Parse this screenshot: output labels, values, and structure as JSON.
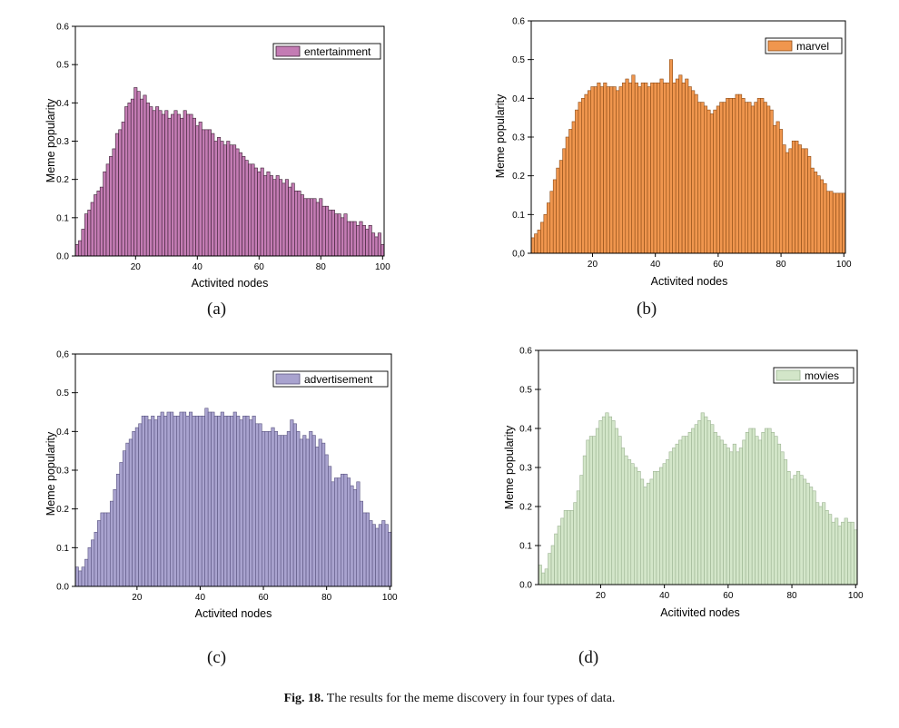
{
  "caption": {
    "label": "Fig. 18.",
    "text": "The results for the meme discovery in four types of data."
  },
  "chart_data": [
    {
      "type": "bar",
      "panel_label": "(a)",
      "xlabel": "Activited nodes",
      "ylabel": "Meme popularity",
      "legend": "entertainment",
      "legend_position": "top-right",
      "color": "#c47cb4",
      "edge_color": "#3a1f33",
      "xlim": [
        1,
        100
      ],
      "ylim": [
        0,
        0.6
      ],
      "xticks": [
        20,
        40,
        60,
        80,
        100
      ],
      "yticks": [
        0.0,
        0.1,
        0.2,
        0.3,
        0.4,
        0.5,
        0.6
      ],
      "ytick_labels": [
        "0.0",
        "0.1",
        "0.2",
        "0.3",
        "0.4",
        "0.5",
        "0.6"
      ],
      "x": [
        1,
        2,
        3,
        4,
        5,
        6,
        7,
        8,
        9,
        10,
        11,
        12,
        13,
        14,
        15,
        16,
        17,
        18,
        19,
        20,
        21,
        22,
        23,
        24,
        25,
        26,
        27,
        28,
        29,
        30,
        31,
        32,
        33,
        34,
        35,
        36,
        37,
        38,
        39,
        40,
        41,
        42,
        43,
        44,
        45,
        46,
        47,
        48,
        49,
        50,
        51,
        52,
        53,
        54,
        55,
        56,
        57,
        58,
        59,
        60,
        61,
        62,
        63,
        64,
        65,
        66,
        67,
        68,
        69,
        70,
        71,
        72,
        73,
        74,
        75,
        76,
        77,
        78,
        79,
        80,
        81,
        82,
        83,
        84,
        85,
        86,
        87,
        88,
        89,
        90,
        91,
        92,
        93,
        94,
        95,
        96,
        97,
        98,
        99,
        100
      ],
      "values": [
        0.03,
        0.04,
        0.07,
        0.11,
        0.12,
        0.14,
        0.16,
        0.17,
        0.18,
        0.22,
        0.24,
        0.26,
        0.28,
        0.32,
        0.33,
        0.35,
        0.39,
        0.4,
        0.41,
        0.44,
        0.43,
        0.41,
        0.42,
        0.4,
        0.39,
        0.38,
        0.39,
        0.38,
        0.37,
        0.38,
        0.36,
        0.37,
        0.38,
        0.37,
        0.36,
        0.38,
        0.37,
        0.37,
        0.36,
        0.34,
        0.35,
        0.33,
        0.33,
        0.33,
        0.32,
        0.3,
        0.31,
        0.3,
        0.29,
        0.3,
        0.29,
        0.29,
        0.28,
        0.27,
        0.26,
        0.25,
        0.24,
        0.24,
        0.23,
        0.22,
        0.23,
        0.21,
        0.22,
        0.21,
        0.2,
        0.21,
        0.2,
        0.19,
        0.2,
        0.18,
        0.19,
        0.17,
        0.17,
        0.16,
        0.15,
        0.15,
        0.15,
        0.15,
        0.14,
        0.15,
        0.13,
        0.13,
        0.12,
        0.12,
        0.11,
        0.11,
        0.1,
        0.11,
        0.09,
        0.09,
        0.09,
        0.08,
        0.09,
        0.08,
        0.07,
        0.08,
        0.06,
        0.05,
        0.06,
        0.03
      ]
    },
    {
      "type": "bar",
      "panel_label": "(b)",
      "xlabel": "Activited nodes",
      "ylabel": "Meme popularity",
      "legend": "marvel",
      "legend_position": "top-right",
      "color": "#f0964e",
      "edge_color": "#8c4b16",
      "xlim": [
        1,
        100
      ],
      "ylim": [
        0,
        0.6
      ],
      "xticks": [
        20,
        40,
        60,
        80,
        100
      ],
      "yticks": [
        0.0,
        0.1,
        0.2,
        0.3,
        0.4,
        0.5,
        0.6
      ],
      "ytick_labels": [
        "0,0",
        "0.1",
        "0.2",
        "0.3",
        "0.4",
        "0.5",
        "0.6"
      ],
      "x": [
        1,
        2,
        3,
        4,
        5,
        6,
        7,
        8,
        9,
        10,
        11,
        12,
        13,
        14,
        15,
        16,
        17,
        18,
        19,
        20,
        21,
        22,
        23,
        24,
        25,
        26,
        27,
        28,
        29,
        30,
        31,
        32,
        33,
        34,
        35,
        36,
        37,
        38,
        39,
        40,
        41,
        42,
        43,
        44,
        45,
        46,
        47,
        48,
        49,
        50,
        51,
        52,
        53,
        54,
        55,
        56,
        57,
        58,
        59,
        60,
        61,
        62,
        63,
        64,
        65,
        66,
        67,
        68,
        69,
        70,
        71,
        72,
        73,
        74,
        75,
        76,
        77,
        78,
        79,
        80,
        81,
        82,
        83,
        84,
        85,
        86,
        87,
        88,
        89,
        90,
        91,
        92,
        93,
        94,
        95,
        96,
        97,
        98,
        99,
        100
      ],
      "values": [
        0.04,
        0.05,
        0.06,
        0.08,
        0.1,
        0.13,
        0.16,
        0.19,
        0.22,
        0.24,
        0.27,
        0.3,
        0.32,
        0.34,
        0.37,
        0.39,
        0.4,
        0.41,
        0.42,
        0.43,
        0.43,
        0.44,
        0.43,
        0.44,
        0.43,
        0.43,
        0.43,
        0.42,
        0.43,
        0.44,
        0.45,
        0.44,
        0.46,
        0.44,
        0.43,
        0.44,
        0.44,
        0.43,
        0.44,
        0.44,
        0.44,
        0.45,
        0.44,
        0.44,
        0.5,
        0.44,
        0.45,
        0.46,
        0.44,
        0.45,
        0.43,
        0.42,
        0.41,
        0.39,
        0.39,
        0.38,
        0.37,
        0.36,
        0.37,
        0.38,
        0.39,
        0.39,
        0.4,
        0.4,
        0.4,
        0.41,
        0.41,
        0.4,
        0.39,
        0.39,
        0.38,
        0.39,
        0.4,
        0.4,
        0.39,
        0.38,
        0.37,
        0.33,
        0.34,
        0.32,
        0.28,
        0.26,
        0.27,
        0.29,
        0.29,
        0.28,
        0.27,
        0.27,
        0.25,
        0.22,
        0.21,
        0.2,
        0.19,
        0.18,
        0.16,
        0.16,
        0.155,
        0.155,
        0.155,
        0.155
      ]
    },
    {
      "type": "bar",
      "panel_label": "(c)",
      "xlabel": "Activited nodes",
      "ylabel": "Meme popularity",
      "legend": "advertisement",
      "legend_position": "top-right",
      "color": "#a9a3cf",
      "edge_color": "#5a5480",
      "xlim": [
        1,
        100
      ],
      "ylim": [
        0,
        0.6
      ],
      "xticks": [
        20,
        40,
        60,
        80,
        100
      ],
      "yticks": [
        0.0,
        0.1,
        0.2,
        0.3,
        0.4,
        0.5,
        0.6
      ],
      "ytick_labels": [
        "0.0",
        "0.1",
        "0.2",
        "0.3",
        "0.4",
        "0.5",
        "0,6"
      ],
      "x": [
        1,
        2,
        3,
        4,
        5,
        6,
        7,
        8,
        9,
        10,
        11,
        12,
        13,
        14,
        15,
        16,
        17,
        18,
        19,
        20,
        21,
        22,
        23,
        24,
        25,
        26,
        27,
        28,
        29,
        30,
        31,
        32,
        33,
        34,
        35,
        36,
        37,
        38,
        39,
        40,
        41,
        42,
        43,
        44,
        45,
        46,
        47,
        48,
        49,
        50,
        51,
        52,
        53,
        54,
        55,
        56,
        57,
        58,
        59,
        60,
        61,
        62,
        63,
        64,
        65,
        66,
        67,
        68,
        69,
        70,
        71,
        72,
        73,
        74,
        75,
        76,
        77,
        78,
        79,
        80,
        81,
        82,
        83,
        84,
        85,
        86,
        87,
        88,
        89,
        90,
        91,
        92,
        93,
        94,
        95,
        96,
        97,
        98,
        99,
        100
      ],
      "values": [
        0.05,
        0.04,
        0.05,
        0.07,
        0.1,
        0.12,
        0.14,
        0.17,
        0.19,
        0.19,
        0.19,
        0.22,
        0.25,
        0.29,
        0.32,
        0.35,
        0.37,
        0.38,
        0.4,
        0.41,
        0.42,
        0.44,
        0.44,
        0.43,
        0.44,
        0.43,
        0.44,
        0.45,
        0.44,
        0.45,
        0.45,
        0.44,
        0.44,
        0.45,
        0.45,
        0.44,
        0.45,
        0.44,
        0.44,
        0.44,
        0.44,
        0.46,
        0.45,
        0.45,
        0.44,
        0.44,
        0.45,
        0.44,
        0.44,
        0.44,
        0.45,
        0.44,
        0.43,
        0.44,
        0.44,
        0.43,
        0.44,
        0.42,
        0.42,
        0.4,
        0.4,
        0.4,
        0.41,
        0.4,
        0.39,
        0.39,
        0.39,
        0.4,
        0.43,
        0.42,
        0.4,
        0.38,
        0.39,
        0.38,
        0.4,
        0.39,
        0.36,
        0.38,
        0.37,
        0.34,
        0.31,
        0.27,
        0.28,
        0.28,
        0.29,
        0.29,
        0.28,
        0.26,
        0.25,
        0.27,
        0.22,
        0.19,
        0.19,
        0.17,
        0.16,
        0.15,
        0.16,
        0.17,
        0.16,
        0.14
      ]
    },
    {
      "type": "bar",
      "panel_label": "(d)",
      "xlabel": "Acitivited nodes",
      "ylabel": "Meme popularity",
      "legend": "movies",
      "legend_position": "top-right",
      "color": "#d3e6c9",
      "edge_color": "#9cb392",
      "xlim": [
        1,
        100
      ],
      "ylim": [
        0,
        0.6
      ],
      "xticks": [
        20,
        40,
        60,
        80,
        100
      ],
      "yticks": [
        0.0,
        0.1,
        0.2,
        0.3,
        0.4,
        0.5,
        0.6
      ],
      "ytick_labels": [
        "0.0",
        "0.1",
        "0.2",
        "0.3",
        "0.4",
        "0.5",
        "0.6"
      ],
      "x": [
        1,
        2,
        3,
        4,
        5,
        6,
        7,
        8,
        9,
        10,
        11,
        12,
        13,
        14,
        15,
        16,
        17,
        18,
        19,
        20,
        21,
        22,
        23,
        24,
        25,
        26,
        27,
        28,
        29,
        30,
        31,
        32,
        33,
        34,
        35,
        36,
        37,
        38,
        39,
        40,
        41,
        42,
        43,
        44,
        45,
        46,
        47,
        48,
        49,
        50,
        51,
        52,
        53,
        54,
        55,
        56,
        57,
        58,
        59,
        60,
        61,
        62,
        63,
        64,
        65,
        66,
        67,
        68,
        69,
        70,
        71,
        72,
        73,
        74,
        75,
        76,
        77,
        78,
        79,
        80,
        81,
        82,
        83,
        84,
        85,
        86,
        87,
        88,
        89,
        90,
        91,
        92,
        93,
        94,
        95,
        96,
        97,
        98,
        99,
        100
      ],
      "values": [
        0.05,
        0.03,
        0.04,
        0.08,
        0.1,
        0.13,
        0.15,
        0.17,
        0.19,
        0.19,
        0.19,
        0.21,
        0.24,
        0.28,
        0.33,
        0.37,
        0.38,
        0.38,
        0.4,
        0.42,
        0.43,
        0.44,
        0.43,
        0.42,
        0.4,
        0.38,
        0.35,
        0.33,
        0.32,
        0.31,
        0.3,
        0.29,
        0.27,
        0.25,
        0.26,
        0.27,
        0.29,
        0.29,
        0.3,
        0.31,
        0.32,
        0.34,
        0.35,
        0.36,
        0.37,
        0.38,
        0.38,
        0.39,
        0.4,
        0.41,
        0.42,
        0.44,
        0.43,
        0.42,
        0.41,
        0.39,
        0.38,
        0.37,
        0.36,
        0.35,
        0.34,
        0.36,
        0.34,
        0.35,
        0.37,
        0.39,
        0.4,
        0.4,
        0.38,
        0.37,
        0.39,
        0.4,
        0.4,
        0.39,
        0.38,
        0.36,
        0.34,
        0.32,
        0.29,
        0.27,
        0.28,
        0.29,
        0.28,
        0.27,
        0.26,
        0.25,
        0.24,
        0.21,
        0.2,
        0.21,
        0.19,
        0.18,
        0.16,
        0.17,
        0.15,
        0.16,
        0.17,
        0.16,
        0.16,
        0.14
      ]
    }
  ]
}
